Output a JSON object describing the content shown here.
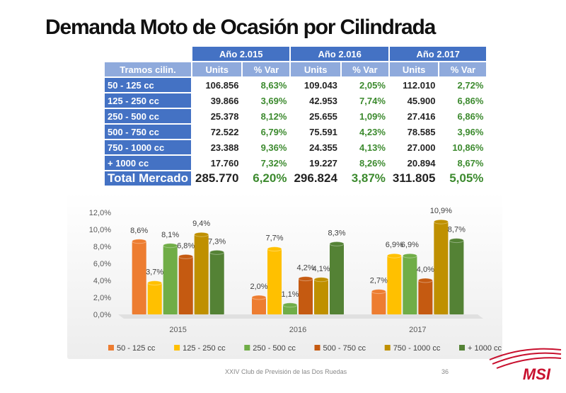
{
  "title": "Demanda Moto de Ocasión por Cilindrada",
  "table": {
    "years": [
      "Año 2.015",
      "Año 2.016",
      "Año 2.017"
    ],
    "col_label": "Tramos cilin.",
    "sub_headers": [
      "Units",
      "% Var",
      "Units",
      "% Var",
      "Units",
      "% Var"
    ],
    "rows": [
      {
        "label": " 50 - 125 cc",
        "cells": [
          "106.856",
          "8,63%",
          "109.043",
          "2,05%",
          "112.010",
          "2,72%"
        ]
      },
      {
        "label": "125 - 250 cc",
        "cells": [
          "39.866",
          "3,69%",
          "42.953",
          "7,74%",
          "45.900",
          "6,86%"
        ]
      },
      {
        "label": "250 - 500 cc",
        "cells": [
          "25.378",
          "8,12%",
          "25.655",
          "1,09%",
          "27.416",
          "6,86%"
        ]
      },
      {
        "label": "500 - 750 cc",
        "cells": [
          "72.522",
          "6,79%",
          "75.591",
          "4,23%",
          "78.585",
          "3,96%"
        ]
      },
      {
        "label": "750 - 1000 cc",
        "cells": [
          "23.388",
          "9,36%",
          "24.355",
          "4,13%",
          "27.000",
          "10,86%"
        ]
      },
      {
        "label": " + 1000 cc",
        "cells": [
          "17.760",
          "7,32%",
          "19.227",
          "8,26%",
          "20.894",
          "8,67%"
        ]
      }
    ],
    "total": {
      "label": "Total Mercado",
      "cells": [
        "285.770",
        "6,20%",
        "296.824",
        "3,87%",
        "311.805",
        "5,05%"
      ]
    }
  },
  "chart_data": {
    "type": "bar",
    "title": "",
    "xlabel": "",
    "ylabel": "",
    "categories": [
      "2015",
      "2016",
      "2017"
    ],
    "ylim": [
      0,
      12
    ],
    "yticks": [
      "0,0%",
      "2,0%",
      "4,0%",
      "6,0%",
      "8,0%",
      "10,0%",
      "12,0%"
    ],
    "series": [
      {
        "name": "50 - 125 cc",
        "color": "#ed7d31",
        "values": [
          8.6,
          2.0,
          2.7
        ],
        "labels": [
          "8,6%",
          "2,0%",
          "2,7%"
        ]
      },
      {
        "name": "125 - 250 cc",
        "color": "#ffc000",
        "values": [
          3.7,
          7.7,
          6.9
        ],
        "labels": [
          "3,7%",
          "7,7%",
          "6,9%"
        ]
      },
      {
        "name": "250 - 500 cc",
        "color": "#70ad47",
        "values": [
          8.1,
          1.1,
          6.9
        ],
        "labels": [
          "8,1%",
          "1,1%",
          "6,9%"
        ]
      },
      {
        "name": "500 - 750 cc",
        "color": "#c55a11",
        "values": [
          6.8,
          4.2,
          4.0
        ],
        "labels": [
          "6,8%",
          "4,2%",
          "4,0%"
        ]
      },
      {
        "name": "750 - 1000 cc",
        "color": "#bf9000",
        "values": [
          9.4,
          4.1,
          10.9
        ],
        "labels": [
          "9,4%",
          "4,1%",
          "10,9%"
        ]
      },
      {
        "name": "+ 1000 cc",
        "color": "#548235",
        "values": [
          7.3,
          8.3,
          8.7
        ],
        "labels": [
          "7,3%",
          "8,3%",
          "8,7%"
        ]
      }
    ],
    "legend": "bottom"
  },
  "footer": {
    "text": "XXIV Club de Previsión de las Dos Ruedas",
    "page": "36"
  },
  "logo": {
    "text": "MSI"
  }
}
